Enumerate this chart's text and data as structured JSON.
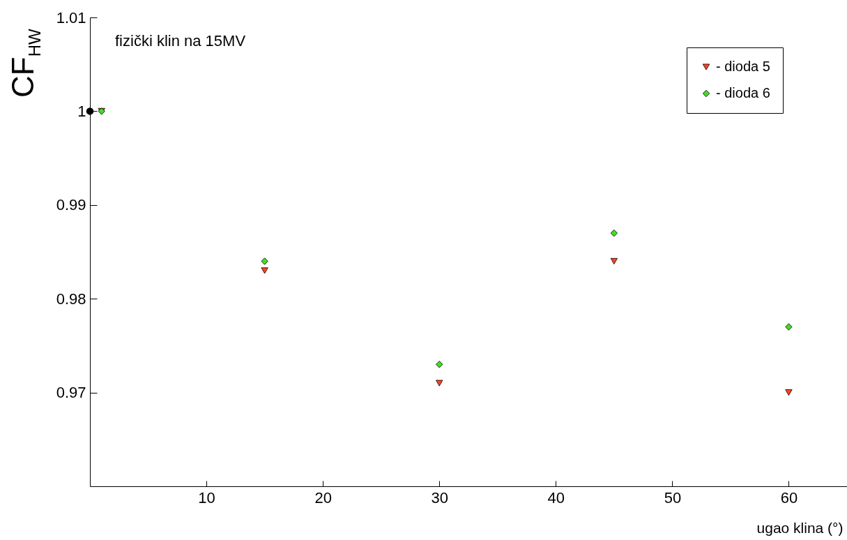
{
  "chart_data": {
    "type": "scatter",
    "xlabel": "ugao klina (°)",
    "ylabel": "CF$_{HW}$",
    "annotations": [
      "fizički klin na 15MV"
    ],
    "xlim": [
      0,
      65
    ],
    "xticks": [
      10,
      20,
      30,
      40,
      50,
      60
    ],
    "ylim": [
      0.96,
      1.01
    ],
    "yticks": [
      0.97,
      0.98,
      0.99,
      1,
      1.01
    ],
    "grid": false,
    "legend": "top right",
    "series": [
      {
        "name": "- dioda 5",
        "color": "#ff4422",
        "marker": "triangle",
        "x": [
          1,
          15,
          30,
          45,
          60
        ],
        "values": [
          1.0,
          0.983,
          0.971,
          0.984,
          0.97
        ]
      },
      {
        "name": "- dioda 6",
        "color": "#44dd22",
        "marker": "diamond",
        "x": [
          1,
          15,
          30,
          45,
          60
        ],
        "values": [
          1.0,
          0.984,
          0.973,
          0.987,
          0.977
        ]
      },
      {
        "color": "#000000",
        "marker": "circle",
        "x": [
          0
        ],
        "values": [
          1.0
        ]
      }
    ]
  }
}
